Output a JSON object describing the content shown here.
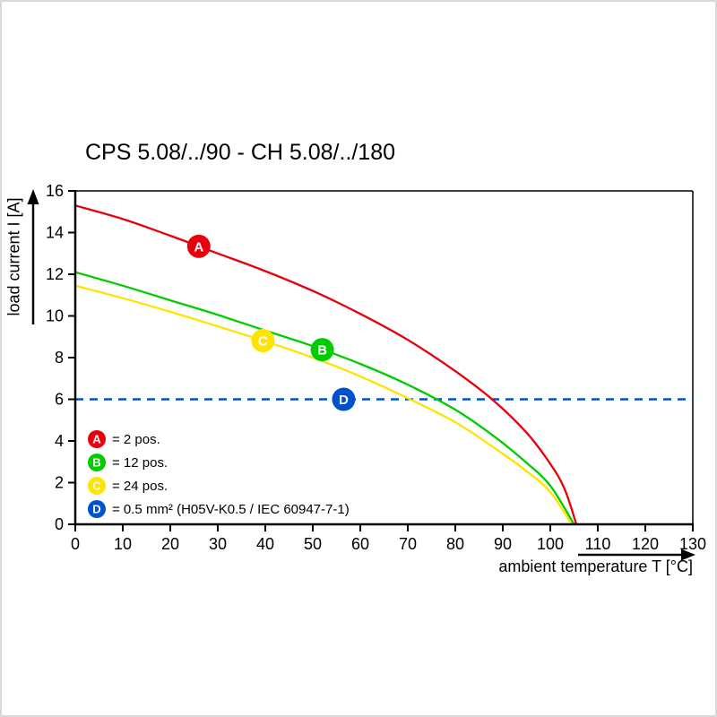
{
  "chart_data": {
    "type": "line",
    "title": "CPS 5.08/../90 - CH 5.08/../180",
    "xlabel": "ambient temperature T [°C]",
    "ylabel": "load current I [A]",
    "xlim": [
      0,
      130
    ],
    "ylim": [
      0,
      16
    ],
    "xticks": [
      0,
      10,
      20,
      30,
      40,
      50,
      60,
      70,
      80,
      90,
      100,
      110,
      120,
      130
    ],
    "yticks": [
      0,
      2,
      4,
      6,
      8,
      10,
      12,
      14,
      16
    ],
    "grid": false,
    "legend_position": "bottom-left-inside",
    "series": [
      {
        "id": "A",
        "legend": "= 2 pos.",
        "color": "#e8000d",
        "style": "solid",
        "marker_x": 26,
        "points": [
          [
            0,
            15.3
          ],
          [
            10,
            14.65
          ],
          [
            20,
            13.85
          ],
          [
            30,
            13.0
          ],
          [
            40,
            12.15
          ],
          [
            50,
            11.2
          ],
          [
            60,
            10.1
          ],
          [
            70,
            8.85
          ],
          [
            80,
            7.35
          ],
          [
            88,
            5.95
          ],
          [
            95,
            4.4
          ],
          [
            100,
            2.9
          ],
          [
            103,
            1.7
          ],
          [
            105.5,
            0
          ]
        ]
      },
      {
        "id": "B",
        "legend": "= 12 pos.",
        "color": "#00cc00",
        "style": "solid",
        "marker_x": 52,
        "points": [
          [
            0,
            12.1
          ],
          [
            10,
            11.45
          ],
          [
            20,
            10.75
          ],
          [
            30,
            10.05
          ],
          [
            40,
            9.3
          ],
          [
            50,
            8.55
          ],
          [
            60,
            7.7
          ],
          [
            70,
            6.7
          ],
          [
            80,
            5.5
          ],
          [
            88,
            4.25
          ],
          [
            95,
            2.95
          ],
          [
            100,
            1.85
          ],
          [
            105,
            0
          ]
        ]
      },
      {
        "id": "C",
        "legend": "= 24 pos.",
        "color": "#ffe400",
        "style": "solid",
        "marker_x": 39.5,
        "points": [
          [
            0,
            11.45
          ],
          [
            10,
            10.85
          ],
          [
            20,
            10.2
          ],
          [
            30,
            9.5
          ],
          [
            40,
            8.78
          ],
          [
            50,
            8.0
          ],
          [
            60,
            7.1
          ],
          [
            70,
            6.05
          ],
          [
            80,
            4.9
          ],
          [
            88,
            3.7
          ],
          [
            95,
            2.55
          ],
          [
            100,
            1.55
          ],
          [
            104.5,
            0
          ]
        ]
      },
      {
        "id": "D",
        "legend": "= 0.5 mm² (H05V-K0.5 / IEC 60947-7-1)",
        "color": "#0052cc",
        "style": "dashed",
        "marker_x": 56.5,
        "points": [
          [
            0,
            6
          ],
          [
            130,
            6
          ]
        ]
      }
    ]
  }
}
